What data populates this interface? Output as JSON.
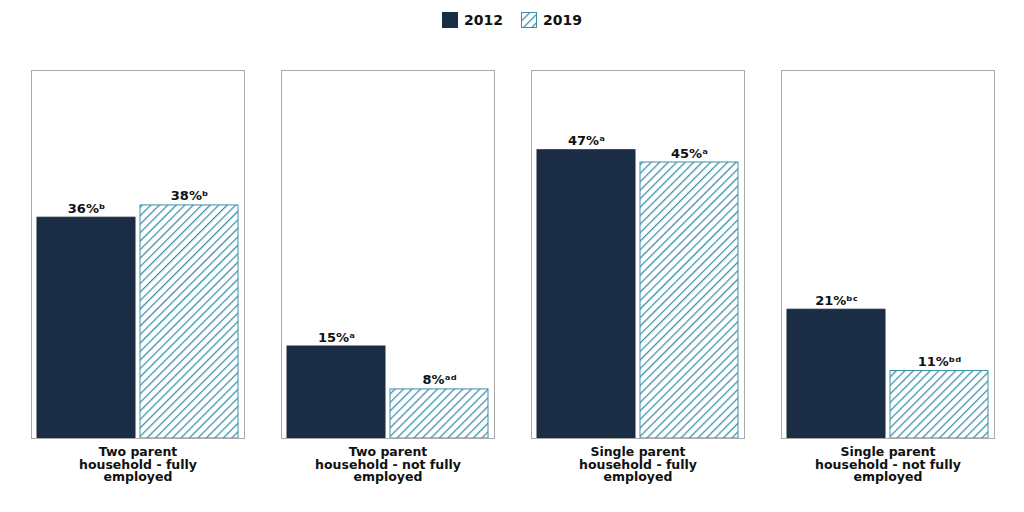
{
  "chart_data": {
    "type": "bar",
    "categories": [
      "Two parent\nhousehold - fully\nemployed",
      "Two parent\nhousehold - not fully\nemployed",
      "Single parent\nhousehold - fully\nemployed",
      "Single parent\nhousehold - not fully\nemployed"
    ],
    "series": [
      {
        "name": "2012",
        "color": "#1b2d45",
        "values": [
          36,
          15,
          47,
          21
        ],
        "value_labels": [
          "36%ᵇ",
          "15%ᵃ",
          "47%ᵃ",
          "21%ᵇᶜ"
        ]
      },
      {
        "name": "2019",
        "color": "#3a8fa8",
        "values": [
          38,
          8,
          45,
          11
        ],
        "value_labels": [
          "38%ᵇ",
          "8%ᵃᵈ",
          "45%ᵃ",
          "11%ᵇᵈ"
        ]
      }
    ],
    "ylim": [
      0,
      60
    ],
    "grid": false,
    "legend": "top",
    "data_labels": true,
    "tick_labels": "x"
  }
}
